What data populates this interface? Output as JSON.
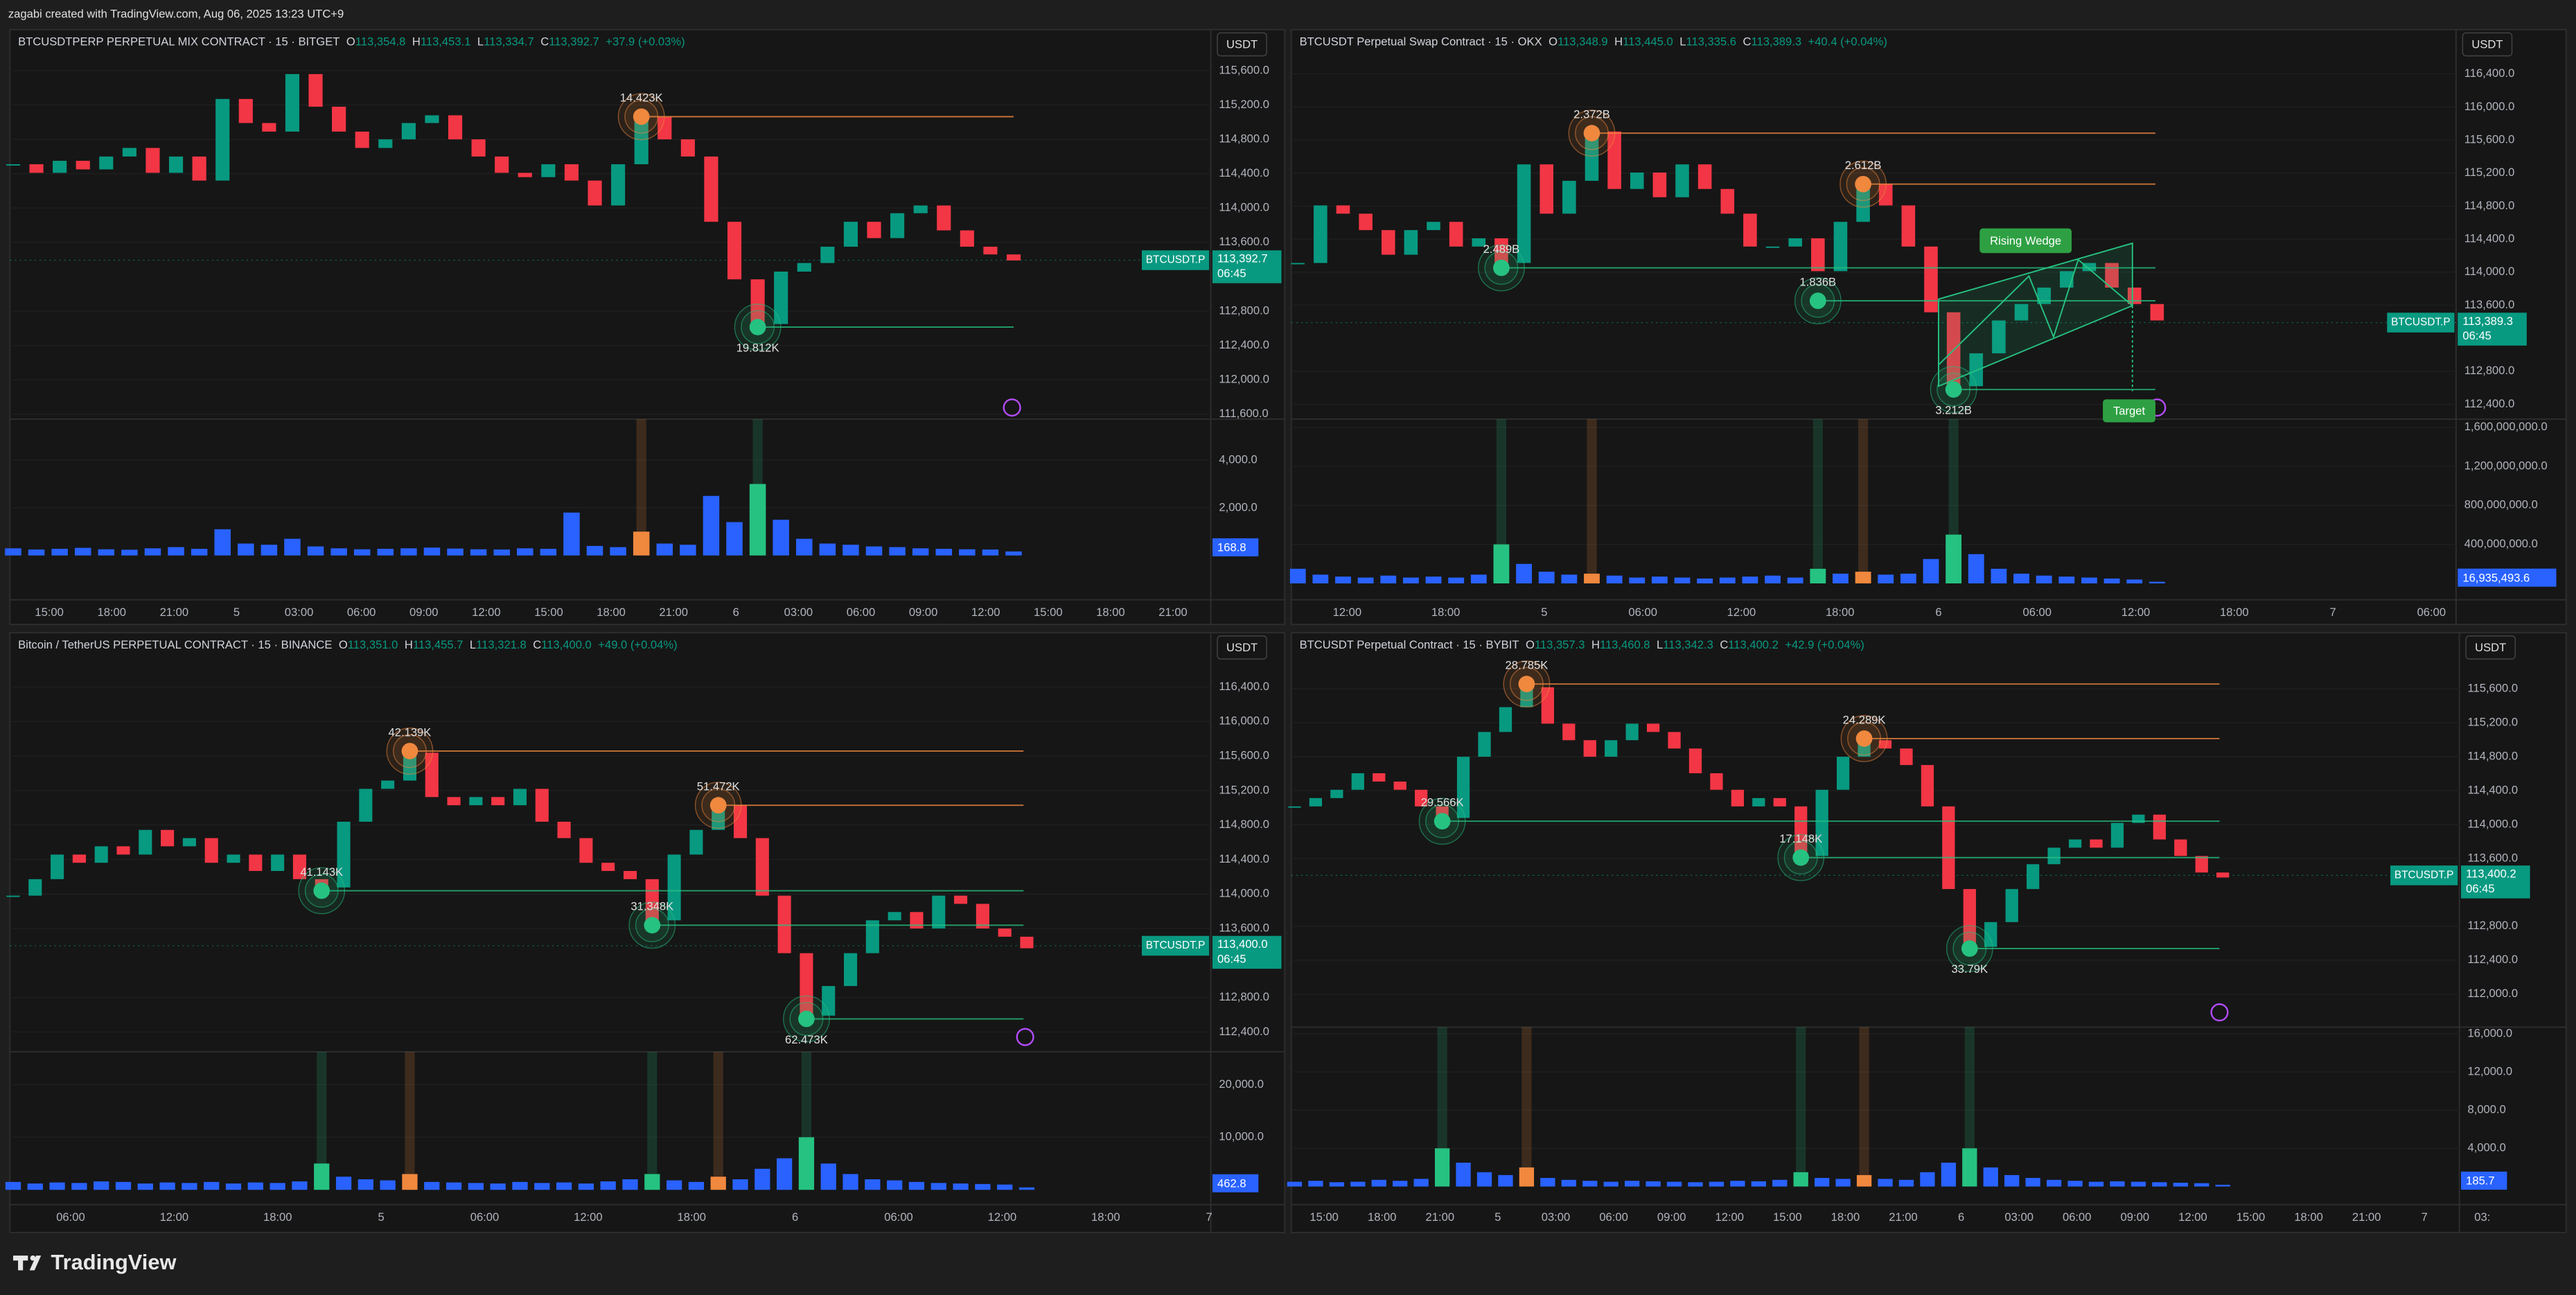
{
  "header": {
    "credit": "zagabi created with TradingView.com, Aug 06, 2025 13:23 UTC+9"
  },
  "footer": {
    "brand": "TradingView"
  },
  "chart_data": [
    {
      "type": "candlestick",
      "title": "BTCUSDTPERP PERPETUAL MIX CONTRACT · 15 · BITGET",
      "ohlc": [
        {
          "k": "O",
          "v": "113,354.8"
        },
        {
          "k": "H",
          "v": "113,453.1"
        },
        {
          "k": "L",
          "v": "113,334.7"
        },
        {
          "k": "C",
          "v": "113,392.7"
        }
      ],
      "change": "+37.9 (+0.03%)",
      "currency": "USDT",
      "symbol": "BTCUSDT.P",
      "countdown": "06:45",
      "up_color": "#089981",
      "down_color": "#f23645",
      "volume_color": "#2962ff",
      "values": [
        114510,
        114410,
        114550,
        114450,
        114600,
        114700,
        114410,
        114600,
        114320,
        115270,
        114990,
        114890,
        115560,
        115180,
        114890,
        114700,
        114800,
        114990,
        115080,
        114800,
        114600,
        114410,
        114360,
        114510,
        114320,
        114030,
        114510,
        115060,
        114800,
        114600,
        113840,
        113170,
        112650,
        113260,
        113360,
        113550,
        113840,
        113650,
        113940,
        114030,
        113740,
        113550,
        113460,
        113390
      ],
      "ylim": [
        111543,
        116078
      ],
      "yticks": [
        {
          "value": 111600,
          "label": "111,600.0"
        },
        {
          "value": 112000,
          "label": "112,000.0"
        },
        {
          "value": 112400,
          "label": "112,400.0"
        },
        {
          "value": 112800,
          "label": "112,800.0"
        },
        {
          "value": 113600,
          "label": "113,600.0"
        },
        {
          "value": 114000,
          "label": "114,000.0"
        },
        {
          "value": 114400,
          "label": "114,400.0"
        },
        {
          "value": 114800,
          "label": "114,800.0"
        },
        {
          "value": 115200,
          "label": "115,200.0"
        },
        {
          "value": 115600,
          "label": "115,600.0"
        }
      ],
      "last": {
        "value": 113392.7,
        "label": "113,392.7"
      },
      "volume": {
        "values": [
          300,
          250,
          280,
          320,
          260,
          240,
          300,
          350,
          280,
          1100,
          500,
          450,
          700,
          380,
          300,
          260,
          280,
          300,
          330,
          290,
          260,
          250,
          300,
          280,
          1800,
          400,
          350,
          1000,
          500,
          450,
          2500,
          1400,
          3000,
          1500,
          700,
          500,
          450,
          380,
          350,
          300,
          280,
          260,
          250,
          169
        ],
        "ylim": [
          0,
          5724
        ],
        "yticks": [
          {
            "value": 2000,
            "label": "2,000.0"
          },
          {
            "value": 4000,
            "label": "4,000.0"
          }
        ],
        "last": 168.8
      },
      "time_labels": [
        "15:00",
        "18:00",
        "21:00",
        "5",
        "03:00",
        "06:00",
        "09:00",
        "12:00",
        "15:00",
        "18:00",
        "21:00",
        "6",
        "03:00",
        "06:00",
        "09:00",
        "12:00",
        "15:00",
        "18:00",
        "21:00"
      ],
      "annotations": [
        {
          "label": "14.423K",
          "price": 115064,
          "color": "#f0883e"
        },
        {
          "label": "19.812K",
          "price": 112614,
          "color": "#26c281"
        }
      ]
    },
    {
      "type": "candlestick",
      "title": "BTCUSDT Perpetual Swap Contract · 15 · OKX",
      "ohlc": [
        {
          "k": "O",
          "v": "113,348.9"
        },
        {
          "k": "H",
          "v": "113,445.0"
        },
        {
          "k": "L",
          "v": "113,335.6"
        },
        {
          "k": "C",
          "v": "113,389.3"
        }
      ],
      "change": "+40.4 (+0.04%)",
      "currency": "USDT",
      "symbol": "BTCUSDT.P",
      "countdown": "06:45",
      "up_color": "#089981",
      "down_color": "#f23645",
      "volume_color": "#2962ff",
      "values": [
        114111,
        114808,
        114708,
        114509,
        114211,
        114509,
        114609,
        114310,
        114410,
        114111,
        115305,
        114708,
        115106,
        115703,
        115007,
        115206,
        114907,
        115305,
        115007,
        114708,
        114310,
        114310,
        114410,
        114012,
        114609,
        115066,
        114808,
        114310,
        113514,
        112619,
        113017,
        113415,
        113614,
        113813,
        114012,
        114111,
        113813,
        113614,
        113415
      ],
      "ylim": [
        112221,
        116937
      ],
      "yticks": [
        {
          "value": 112400,
          "label": "112,400.0"
        },
        {
          "value": 112800,
          "label": "112,800.0"
        },
        {
          "value": 113600,
          "label": "113,600.0"
        },
        {
          "value": 114000,
          "label": "114,000.0"
        },
        {
          "value": 114400,
          "label": "114,400.0"
        },
        {
          "value": 114800,
          "label": "114,800.0"
        },
        {
          "value": 115200,
          "label": "115,200.0"
        },
        {
          "value": 115600,
          "label": "115,600.0"
        },
        {
          "value": 116000,
          "label": "116,000.0"
        },
        {
          "value": 116400,
          "label": "116,400.0"
        }
      ],
      "last": {
        "value": 113389.3,
        "label": "113,389.3"
      },
      "volume": {
        "values": [
          150000000,
          90000000,
          70000000,
          60000000,
          80000000,
          60000000,
          70000000,
          60000000,
          90000000,
          400000000,
          200000000,
          120000000,
          90000000,
          100000000,
          80000000,
          60000000,
          70000000,
          60000000,
          50000000,
          60000000,
          70000000,
          80000000,
          60000000,
          150000000,
          100000000,
          120000000,
          90000000,
          100000000,
          250000000,
          500000000,
          300000000,
          150000000,
          100000000,
          80000000,
          70000000,
          60000000,
          50000000,
          40000000,
          17000000
        ],
        "ylim": [
          0,
          1684000000
        ],
        "yticks": [
          {
            "value": 400000000,
            "label": "400,000,000.0"
          },
          {
            "value": 800000000,
            "label": "800,000,000.0"
          },
          {
            "value": 1200000000,
            "label": "1,200,000,000.0"
          },
          {
            "value": 1600000000,
            "label": "1,600,000,000.0"
          }
        ],
        "last": {
          "value": 16935493.6,
          "label": "16,935,493.6"
        }
      },
      "time_labels": [
        "12:00",
        "18:00",
        "5",
        "06:00",
        "12:00",
        "18:00",
        "6",
        "06:00",
        "12:00",
        "18:00",
        "7",
        "06:00"
      ],
      "annotations": [
        {
          "label": "2.372B",
          "price": 115683,
          "color": "#f0883e"
        },
        {
          "label": "2.612B",
          "price": 115066,
          "color": "#f0883e"
        },
        {
          "label": "2.489B",
          "price": 114052,
          "color": "#26c281"
        },
        {
          "label": "1.836B",
          "price": 113653,
          "color": "#26c281"
        },
        {
          "label": "3.212B",
          "price": 112579,
          "color": "#26c281"
        }
      ],
      "patterns": [
        {
          "label": "Rising Wedge"
        },
        {
          "label": "Target"
        }
      ]
    },
    {
      "type": "candlestick",
      "title": "Bitcoin / TetherUS PERPETUAL CONTRACT · 15 · BINANCE",
      "ohlc": [
        {
          "k": "O",
          "v": "113,351.0"
        },
        {
          "k": "H",
          "v": "113,455.7"
        },
        {
          "k": "L",
          "v": "113,321.8"
        },
        {
          "k": "C",
          "v": "113,400.0"
        }
      ],
      "change": "+49.0 (+0.04%)",
      "currency": "USDT",
      "symbol": "BTCUSDT.P",
      "countdown": "06:45",
      "up_color": "#089981",
      "down_color": "#f23645",
      "volume_color": "#2962ff",
      "values": [
        113981,
        114172,
        114457,
        114362,
        114553,
        114457,
        114743,
        114553,
        114648,
        114362,
        114457,
        114267,
        114457,
        114172,
        114076,
        114838,
        115219,
        115315,
        115638,
        115124,
        115029,
        115124,
        115029,
        115219,
        114838,
        114648,
        114362,
        114267,
        114172,
        113695,
        114457,
        114743,
        115029,
        114648,
        113981,
        113314,
        112590,
        112933,
        113314,
        113695,
        113791,
        113600,
        113981,
        113886,
        113600,
        113505,
        113371
      ],
      "ylim": [
        112171,
        117029
      ],
      "yticks": [
        {
          "value": 112400,
          "label": "112,400.0"
        },
        {
          "value": 112800,
          "label": "112,800.0"
        },
        {
          "value": 113600,
          "label": "113,600.0"
        },
        {
          "value": 114000,
          "label": "114,000.0"
        },
        {
          "value": 114400,
          "label": "114,400.0"
        },
        {
          "value": 114800,
          "label": "114,800.0"
        },
        {
          "value": 115200,
          "label": "115,200.0"
        },
        {
          "value": 115600,
          "label": "115,600.0"
        },
        {
          "value": 116000,
          "label": "116,000.0"
        },
        {
          "value": 116400,
          "label": "116,400.0"
        }
      ],
      "last": {
        "value": 113400.0,
        "label": "113,400.0"
      },
      "volume": {
        "values": [
          1500,
          1200,
          1400,
          1300,
          1600,
          1500,
          1200,
          1400,
          1300,
          1500,
          1200,
          1400,
          1300,
          1600,
          5000,
          2500,
          2000,
          1800,
          3000,
          1500,
          1400,
          1300,
          1200,
          1500,
          1300,
          1400,
          1200,
          1600,
          2000,
          3000,
          1800,
          1500,
          2500,
          2000,
          4000,
          6000,
          10000,
          5000,
          3000,
          2000,
          1800,
          1500,
          1300,
          1200,
          1100,
          1000,
          463
        ],
        "ylim": [
          0,
          26250
        ],
        "yticks": [
          {
            "value": 10000,
            "label": "10,000.0"
          },
          {
            "value": 20000,
            "label": "20,000.0"
          }
        ],
        "last": 462.8
      },
      "time_labels": [
        "06:00",
        "12:00",
        "18:00",
        "5",
        "06:00",
        "12:00",
        "18:00",
        "6",
        "06:00",
        "12:00",
        "18:00",
        "7"
      ],
      "annotations": [
        {
          "label": "42.139K",
          "price": 115657,
          "color": "#f0883e"
        },
        {
          "label": "51.472K",
          "price": 115029,
          "color": "#f0883e"
        },
        {
          "label": "41.143K",
          "price": 114038,
          "color": "#26c281"
        },
        {
          "label": "31.348K",
          "price": 113638,
          "color": "#26c281"
        },
        {
          "label": "62.473K",
          "price": 112552,
          "color": "#26c281"
        }
      ]
    },
    {
      "type": "candlestick",
      "title": "BTCUSDT Perpetual Contract · 15 · BYBIT",
      "ohlc": [
        {
          "k": "O",
          "v": "113,357.3"
        },
        {
          "k": "H",
          "v": "113,460.8"
        },
        {
          "k": "L",
          "v": "113,342.3"
        },
        {
          "k": "C",
          "v": "113,400.2"
        }
      ],
      "change": "+42.9 (+0.04%)",
      "currency": "USDT",
      "symbol": "BTCUSDT.P",
      "countdown": "06:45",
      "up_color": "#089981",
      "down_color": "#f23645",
      "volume_color": "#2962ff",
      "values": [
        114214,
        114312,
        114410,
        114605,
        114507,
        114410,
        114214,
        114078,
        114800,
        115092,
        115385,
        115619,
        115190,
        114995,
        114800,
        114995,
        115190,
        115092,
        114897,
        114605,
        114410,
        114214,
        114312,
        114214,
        113629,
        114410,
        114800,
        114995,
        114897,
        114702,
        114214,
        113239,
        112556,
        112849,
        113239,
        113532,
        113727,
        113824,
        113727,
        114019,
        114117,
        113824,
        113629,
        113434,
        113375
      ],
      "ylim": [
        111610,
        116263
      ],
      "yticks": [
        {
          "value": 112000,
          "label": "112,000.0"
        },
        {
          "value": 112400,
          "label": "112,400.0"
        },
        {
          "value": 112800,
          "label": "112,800.0"
        },
        {
          "value": 113600,
          "label": "113,600.0"
        },
        {
          "value": 114000,
          "label": "114,000.0"
        },
        {
          "value": 114400,
          "label": "114,400.0"
        },
        {
          "value": 114800,
          "label": "114,800.0"
        },
        {
          "value": 115200,
          "label": "115,200.0"
        },
        {
          "value": 115600,
          "label": "115,600.0"
        }
      ],
      "last": {
        "value": 113400.2,
        "label": "113,400.2"
      },
      "volume": {
        "values": [
          500,
          600,
          450,
          500,
          700,
          600,
          800,
          4000,
          2500,
          1500,
          1200,
          2000,
          900,
          700,
          600,
          500,
          600,
          550,
          500,
          450,
          500,
          600,
          550,
          700,
          1500,
          900,
          800,
          1200,
          800,
          700,
          1500,
          2500,
          4000,
          2000,
          1200,
          900,
          700,
          600,
          500,
          550,
          500,
          450,
          400,
          350,
          186
        ],
        "ylim": [
          0,
          16687
        ],
        "yticks": [
          {
            "value": 4000,
            "label": "4,000.0"
          },
          {
            "value": 8000,
            "label": "8,000.0"
          },
          {
            "value": 12000,
            "label": "12,000.0"
          },
          {
            "value": 16000,
            "label": "16,000.0"
          }
        ],
        "last": 185.7
      },
      "time_labels": [
        "15:00",
        "18:00",
        "21:00",
        "5",
        "03:00",
        "06:00",
        "09:00",
        "12:00",
        "15:00",
        "18:00",
        "21:00",
        "6",
        "03:00",
        "06:00",
        "09:00",
        "12:00",
        "15:00",
        "18:00",
        "21:00",
        "7",
        "03:"
      ],
      "annotations": [
        {
          "label": "28.785K",
          "price": 115658,
          "color": "#f0883e"
        },
        {
          "label": "24.289K",
          "price": 115014,
          "color": "#f0883e"
        },
        {
          "label": "29.566K",
          "price": 114039,
          "color": "#26c281"
        },
        {
          "label": "17.148K",
          "price": 113610,
          "color": "#26c281"
        },
        {
          "label": "33.79K",
          "price": 112537,
          "color": "#26c281"
        }
      ]
    }
  ]
}
